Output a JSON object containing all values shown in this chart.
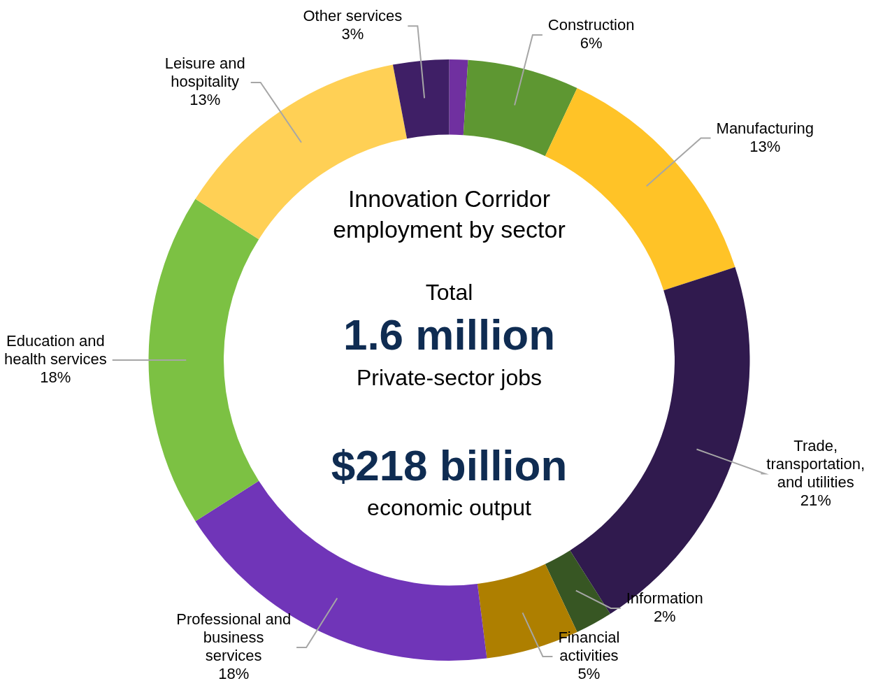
{
  "chart_data": {
    "type": "donut",
    "title": "Innovation Corridor employment by sector",
    "categories": [
      null,
      "Construction",
      "Manufacturing",
      "Trade, transportation, and utilities",
      "Information",
      "Financial activities",
      "Professional and business services",
      "Education and health services",
      "Leisure and hospitality",
      "Other services"
    ],
    "values": [
      1,
      6,
      13,
      21,
      2,
      5,
      18,
      18,
      13,
      3
    ],
    "value_labels": [
      null,
      "6%",
      "13%",
      "21%",
      "2%",
      "5%",
      "18%",
      "18%",
      "13%",
      "3%"
    ],
    "colors": [
      "#7030a0",
      "#5e9732",
      "#ffc327",
      "#301a4e",
      "#375623",
      "#ae7f00",
      "#7035b8",
      "#7cc143",
      "#ffd055",
      "#3f1f66"
    ],
    "annotations": [
      "Total",
      "1.6 million",
      "Private-sector jobs",
      "$218 billion",
      "economic output"
    ],
    "legend": false
  }
}
